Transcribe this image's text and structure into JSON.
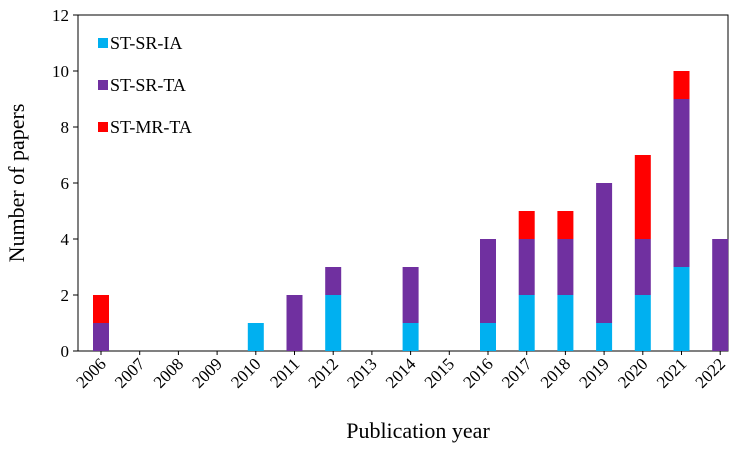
{
  "chart_data": {
    "type": "stacked_bar",
    "x_label": "Publication year",
    "y_label": "Number of papers",
    "categories": [
      "2006",
      "2007",
      "2008",
      "2009",
      "2010",
      "2011",
      "2012",
      "2013",
      "2014",
      "2015",
      "2016",
      "2017",
      "2018",
      "2019",
      "2020",
      "2021",
      "2022"
    ],
    "series": [
      {
        "name": "ST-SR-IA",
        "color": "#00b0f0",
        "values": [
          0,
          0,
          0,
          0,
          1,
          0,
          2,
          0,
          1,
          0,
          1,
          2,
          2,
          1,
          2,
          3,
          0
        ]
      },
      {
        "name": "ST-SR-TA",
        "color": "#7030a0",
        "values": [
          1,
          0,
          0,
          0,
          0,
          2,
          1,
          0,
          2,
          0,
          3,
          2,
          2,
          5,
          2,
          6,
          4
        ]
      },
      {
        "name": "ST-MR-TA",
        "color": "#ff0000",
        "values": [
          1,
          0,
          0,
          0,
          0,
          0,
          0,
          0,
          0,
          0,
          0,
          1,
          1,
          0,
          3,
          1,
          0
        ]
      }
    ],
    "ylim": [
      0,
      12
    ],
    "yticks": [
      0,
      2,
      4,
      6,
      8,
      10,
      12
    ],
    "legend": "upper left",
    "grid": false
  }
}
